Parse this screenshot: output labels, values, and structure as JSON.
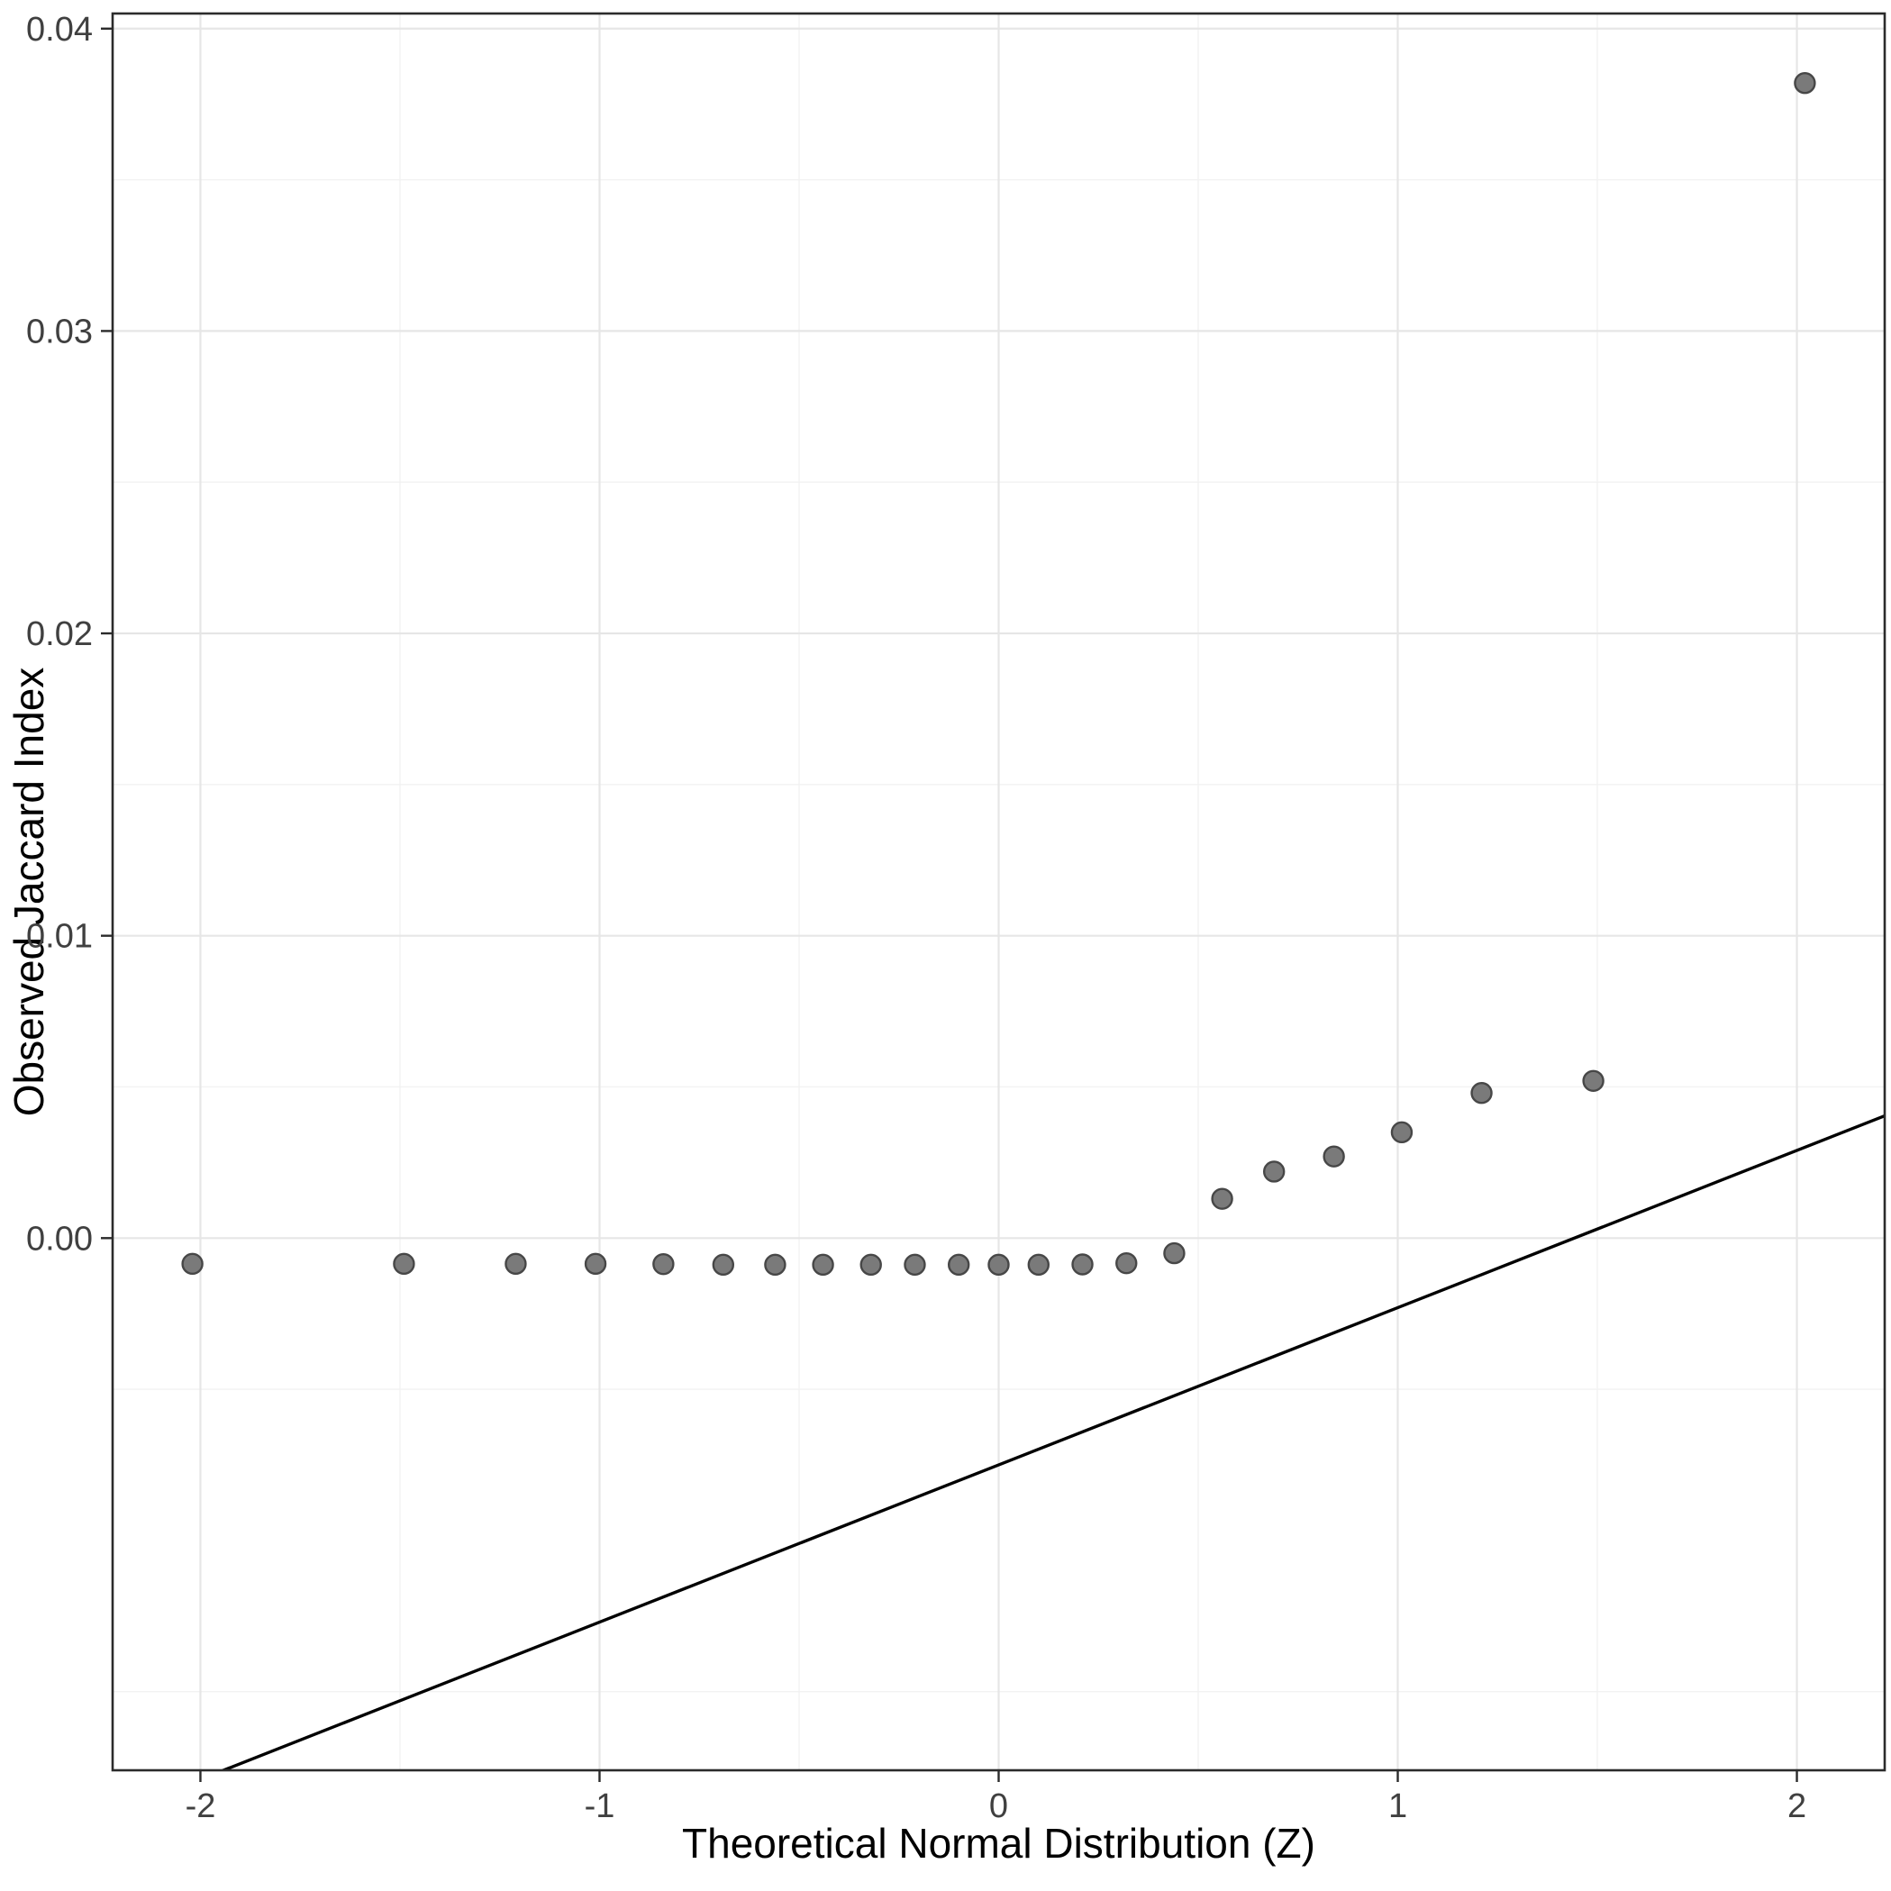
{
  "figure": {
    "background": "#ffffff"
  },
  "chart_data": {
    "type": "scatter",
    "subtype": "qq-plot",
    "title": "",
    "xlabel": "Theoretical Normal Distribution (Z)",
    "ylabel": "Observed Jaccard Index",
    "xlim": [
      -2.22,
      2.22
    ],
    "ylim": [
      -0.0176,
      0.0405
    ],
    "grid": "on",
    "legend_position": "none",
    "x_ticks": [
      {
        "value": -2,
        "label": "-2"
      },
      {
        "value": -1,
        "label": "-1"
      },
      {
        "value": 0,
        "label": "0"
      },
      {
        "value": 1,
        "label": "1"
      },
      {
        "value": 2,
        "label": "2"
      }
    ],
    "y_ticks": [
      {
        "value": 0.0,
        "label": "0.00"
      },
      {
        "value": 0.01,
        "label": "0.01"
      },
      {
        "value": 0.02,
        "label": "0.02"
      },
      {
        "value": 0.03,
        "label": "0.03"
      },
      {
        "value": 0.04,
        "label": "0.04"
      }
    ],
    "x_minor": [
      -1.5,
      -0.5,
      0.5,
      1.5
    ],
    "y_minor": [
      -0.015,
      -0.005,
      0.005,
      0.015,
      0.025,
      0.035
    ],
    "points": [
      [
        -2.02,
        -0.00085
      ],
      [
        -1.49,
        -0.00085
      ],
      [
        -1.21,
        -0.00085
      ],
      [
        -1.01,
        -0.00085
      ],
      [
        -0.84,
        -0.00086
      ],
      [
        -0.69,
        -0.00088
      ],
      [
        -0.56,
        -0.00088
      ],
      [
        -0.44,
        -0.00088
      ],
      [
        -0.32,
        -0.00088
      ],
      [
        -0.21,
        -0.00088
      ],
      [
        -0.1,
        -0.00088
      ],
      [
        0.0,
        -0.00088
      ],
      [
        0.1,
        -0.00088
      ],
      [
        0.21,
        -0.00087
      ],
      [
        0.32,
        -0.00083
      ],
      [
        0.44,
        -0.0005
      ],
      [
        0.56,
        0.0013
      ],
      [
        0.69,
        0.0022
      ],
      [
        0.84,
        0.0027
      ],
      [
        1.01,
        0.0035
      ],
      [
        1.21,
        0.0048
      ],
      [
        1.49,
        0.0052
      ],
      [
        2.02,
        0.0382
      ]
    ],
    "ref_line": {
      "slope": 0.0052,
      "intercept": -0.0075
    },
    "style": {
      "point_fill": "#7a7a7a",
      "point_stroke": "#474747",
      "ref_line_color": "#000000",
      "grid_major_color": "#e6e6e6",
      "grid_minor_color": "#f2f2f2",
      "panel_border_color": "#2b2b2b",
      "tick_color": "#2b2b2b",
      "tick_label_color": "#404040",
      "axis_title_color": "#000000",
      "panel_background": "#ffffff"
    }
  }
}
